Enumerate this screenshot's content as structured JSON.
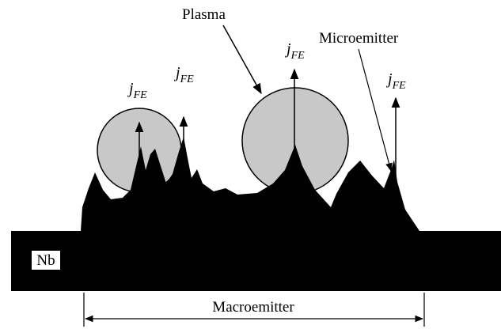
{
  "labels": {
    "plasma": "Plasma",
    "microemitter": "Microemitter",
    "substrate": "Nb",
    "macroemitter": "Macroemitter"
  },
  "arrows": [
    {
      "symbol": "j",
      "subscript": "FE"
    },
    {
      "symbol": "j",
      "subscript": "FE"
    },
    {
      "symbol": "j",
      "subscript": "FE"
    },
    {
      "symbol": "j",
      "subscript": "FE"
    }
  ]
}
